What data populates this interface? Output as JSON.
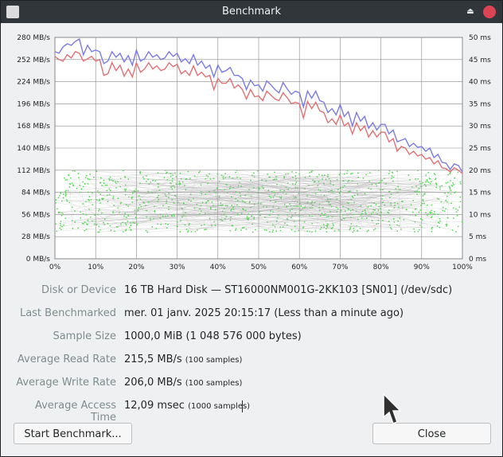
{
  "window": {
    "title": "Benchmark"
  },
  "titlebar": {
    "app_icon": "app-icon",
    "shade_icon": "shade-icon",
    "shade_glyph": "⏏",
    "close_icon": "close-icon"
  },
  "chart_data": {
    "type": "line",
    "x_ticks": [
      "0%",
      "10%",
      "20%",
      "30%",
      "40%",
      "50%",
      "60%",
      "70%",
      "80%",
      "90%",
      "100%"
    ],
    "y_left_ticks": [
      "0 MB/s",
      "28 MB/s",
      "56 MB/s",
      "84 MB/s",
      "112 MB/s",
      "140 MB/s",
      "168 MB/s",
      "196 MB/s",
      "224 MB/s",
      "252 MB/s",
      "280 MB/s"
    ],
    "y_right_ticks": [
      "0 ms",
      "5 ms",
      "10 ms",
      "15 ms",
      "20 ms",
      "25 ms",
      "30 ms",
      "35 ms",
      "40 ms",
      "45 ms",
      "50 ms"
    ],
    "x_range": [
      0,
      100
    ],
    "y_left_range": [
      0,
      280
    ],
    "y_right_range": [
      0,
      50
    ],
    "grid": true,
    "series": [
      {
        "axis": "left",
        "color": "#7b7be6",
        "x": [
          0,
          1,
          2,
          3,
          4,
          5,
          6,
          7,
          8,
          9,
          10,
          11,
          12,
          13,
          14,
          15,
          16,
          17,
          18,
          19,
          20,
          21,
          22,
          23,
          24,
          25,
          26,
          27,
          28,
          29,
          30,
          31,
          32,
          33,
          34,
          35,
          36,
          37,
          38,
          39,
          40,
          41,
          42,
          43,
          44,
          45,
          46,
          47,
          48,
          49,
          50,
          51,
          52,
          53,
          54,
          55,
          56,
          57,
          58,
          59,
          60,
          61,
          62,
          63,
          64,
          65,
          66,
          67,
          68,
          69,
          70,
          71,
          72,
          73,
          74,
          75,
          76,
          77,
          78,
          79,
          80,
          81,
          82,
          83,
          84,
          85,
          86,
          87,
          88,
          89,
          90,
          91,
          92,
          93,
          94,
          95,
          96,
          97,
          98,
          99,
          100
        ],
        "values": [
          262,
          260,
          268,
          272,
          270,
          275,
          278,
          258,
          270,
          262,
          264,
          262,
          247,
          250,
          262,
          255,
          260,
          249,
          257,
          245,
          264,
          250,
          253,
          262,
          255,
          258,
          252,
          254,
          262,
          256,
          260,
          249,
          253,
          247,
          258,
          245,
          250,
          241,
          245,
          230,
          245,
          236,
          238,
          242,
          232,
          232,
          228,
          214,
          226,
          219,
          220,
          212,
          225,
          220,
          214,
          210,
          223,
          215,
          208,
          212,
          210,
          192,
          212,
          203,
          212,
          200,
          198,
          185,
          190,
          182,
          195,
          180,
          186,
          168,
          185,
          174,
          180,
          165,
          172,
          163,
          170,
          170,
          158,
          163,
          148,
          150,
          152,
          142,
          146,
          141,
          142,
          136,
          140,
          128,
          132,
          122,
          121,
          113,
          120,
          118,
          110
        ]
      },
      {
        "axis": "left",
        "color": "#e37073",
        "x": [
          0,
          1,
          2,
          3,
          4,
          5,
          6,
          7,
          8,
          9,
          10,
          11,
          12,
          13,
          14,
          15,
          16,
          17,
          18,
          19,
          20,
          21,
          22,
          23,
          24,
          25,
          26,
          27,
          28,
          29,
          30,
          31,
          32,
          33,
          34,
          35,
          36,
          37,
          38,
          39,
          40,
          41,
          42,
          43,
          44,
          45,
          46,
          47,
          48,
          49,
          50,
          51,
          52,
          53,
          54,
          55,
          56,
          57,
          58,
          59,
          60,
          61,
          62,
          63,
          64,
          65,
          66,
          67,
          68,
          69,
          70,
          71,
          72,
          73,
          74,
          75,
          76,
          77,
          78,
          79,
          80,
          81,
          82,
          83,
          84,
          85,
          86,
          87,
          88,
          89,
          90,
          91,
          92,
          93,
          94,
          95,
          96,
          97,
          98,
          99,
          100
        ],
        "values": [
          256,
          252,
          250,
          258,
          254,
          262,
          260,
          250,
          253,
          256,
          250,
          252,
          232,
          234,
          248,
          238,
          245,
          231,
          240,
          230,
          248,
          236,
          240,
          248,
          240,
          244,
          238,
          240,
          248,
          243,
          246,
          234,
          238,
          232,
          244,
          232,
          236,
          230,
          232,
          214,
          228,
          222,
          222,
          228,
          216,
          220,
          214,
          202,
          214,
          205,
          206,
          200,
          212,
          207,
          202,
          200,
          210,
          204,
          196,
          198,
          196,
          178,
          199,
          190,
          198,
          187,
          185,
          172,
          177,
          170,
          182,
          168,
          172,
          158,
          172,
          162,
          168,
          154,
          162,
          154,
          160,
          160,
          148,
          152,
          136,
          142,
          140,
          132,
          136,
          130,
          132,
          126,
          128,
          120,
          124,
          115,
          114,
          110,
          115,
          112,
          108
        ]
      }
    ],
    "scatter": {
      "axis": "right",
      "color": "#55dd55",
      "count": 1000,
      "y_range": [
        6,
        20
      ]
    }
  },
  "details": [
    {
      "label": "Disk or Device",
      "value": "16 TB Hard Disk — ST16000NM001G-2KK103 [SN01] (/dev/sdc)",
      "note": ""
    },
    {
      "label": "Last Benchmarked",
      "value": "mer. 01 janv. 2025 20:15:17 (Less than a minute ago)",
      "note": ""
    },
    {
      "label": "Sample Size",
      "value": "1000,0 MiB (1 048 576 000 bytes)",
      "note": ""
    },
    {
      "label": "Average Read Rate",
      "value": "215,5 MB/s",
      "note": "(100 samples)"
    },
    {
      "label": "Average Write Rate",
      "value": "206,0 MB/s",
      "note": "(100 samples)"
    },
    {
      "label": "Average Access Time",
      "value": "12,09 msec",
      "note": "(1000 samples)"
    }
  ],
  "buttons": {
    "start": "Start Benchmark...",
    "close": "Close"
  },
  "cursor_icon": "mouse-pointer-icon"
}
